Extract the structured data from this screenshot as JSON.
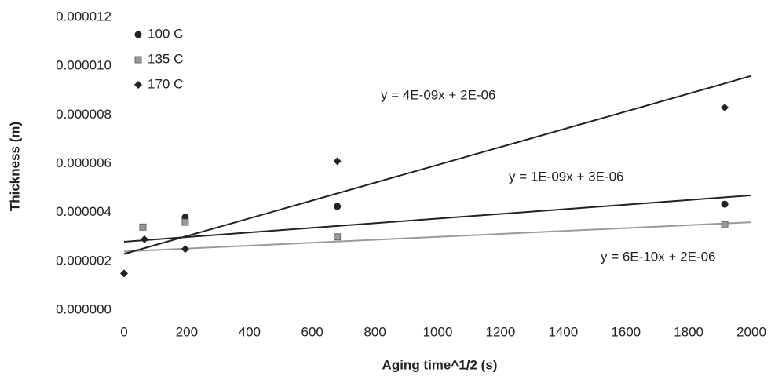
{
  "chart_data": {
    "type": "scatter",
    "xlabel": "Aging time^1/2 (s)",
    "ylabel": "Thickness (m)",
    "xlim": [
      0,
      2000
    ],
    "xticks": [
      0,
      200,
      400,
      600,
      800,
      1000,
      1200,
      1400,
      1600,
      1800,
      2000
    ],
    "ylim": [
      0,
      1.2e-05
    ],
    "yticks": [
      {
        "value": 0,
        "label": "0.000000"
      },
      2e-06,
      4e-06,
      6e-06,
      8e-06,
      {
        "value": 1e-05,
        "label": "0.000010"
      },
      1.2e-05
    ],
    "grid": false,
    "legend": "upper left",
    "series": [
      {
        "name": "100 C",
        "color": "#222222",
        "marker": "circle",
        "x": [
          195,
          680,
          1915
        ],
        "values": [
          3.8e-06,
          4.25e-06,
          4.34e-06
        ],
        "trendline": {
          "equation": "y = 1E-09x + 3E-06",
          "values": [
            2.8e-06,
            4.7e-06
          ]
        }
      },
      {
        "name": "135 C",
        "color": "#9a9a9a",
        "marker": "square",
        "x": [
          60,
          195,
          680,
          1915
        ],
        "values": [
          3.4e-06,
          3.6e-06,
          3e-06,
          3.5e-06
        ],
        "trendline": {
          "equation": "y = 6E-10x + 2E-06",
          "values": [
            2.4e-06,
            3.6e-06
          ]
        }
      },
      {
        "name": "170 C",
        "color": "#222222",
        "marker": "diamond",
        "x": [
          0,
          65,
          195,
          680,
          1915
        ],
        "values": [
          1.5e-06,
          2.9e-06,
          2.5e-06,
          6.1e-06,
          8.3e-06
        ],
        "trendline": {
          "equation": "y = 4E-09x + 2E-06",
          "values": [
            2.3e-06,
            9.6e-06
          ]
        }
      }
    ]
  }
}
